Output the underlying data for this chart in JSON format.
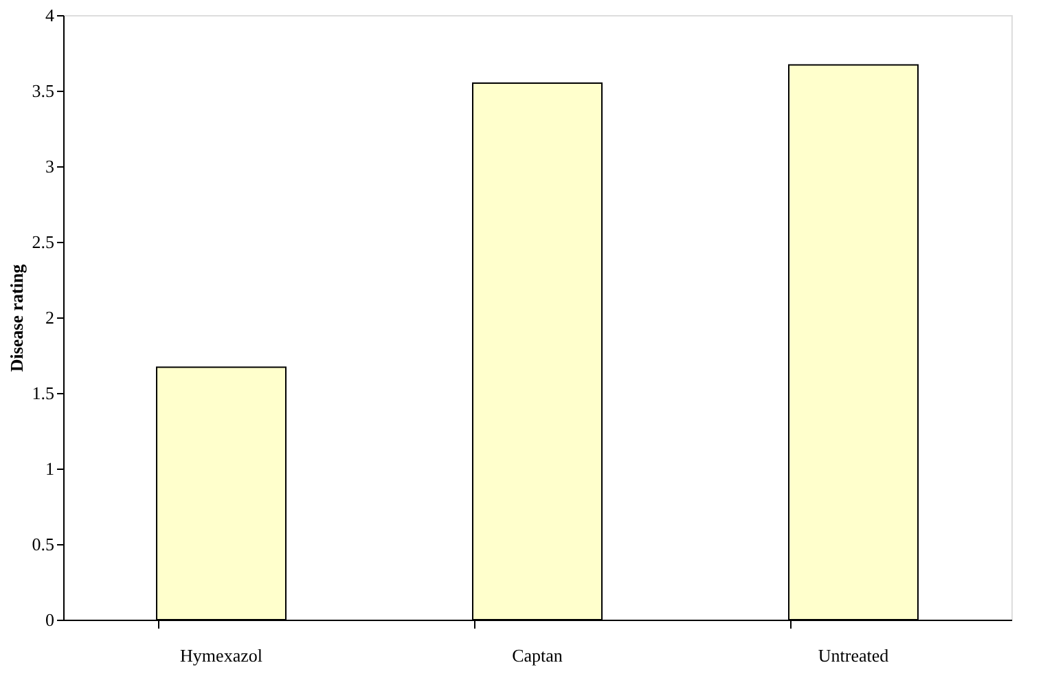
{
  "chart_data": {
    "type": "bar",
    "ylabel": "Disease rating",
    "categories": [
      "Hymexazol",
      "Captan",
      "Untreated"
    ],
    "values": [
      1.67,
      3.55,
      3.67
    ],
    "color": "#ffffcc",
    "ylim": [
      0,
      4
    ],
    "yticks": [
      0,
      0.5,
      1,
      1.5,
      2,
      2.5,
      3,
      3.5,
      4
    ],
    "grid": false
  }
}
